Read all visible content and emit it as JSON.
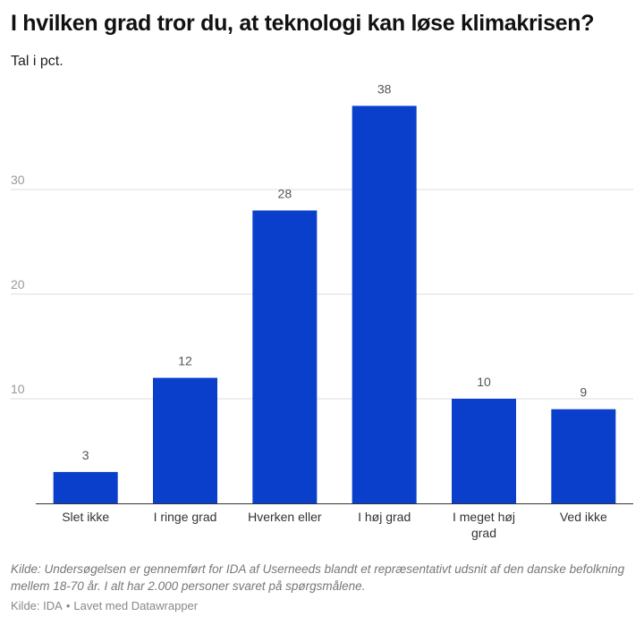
{
  "title": "I hvilken grad tror du, at teknologi kan løse klimakrisen?",
  "subtitle": "Tal i pct.",
  "chart_data": {
    "type": "bar",
    "title": "I hvilken grad tror du, at teknologi kan løse klimakrisen?",
    "subtitle": "Tal i pct.",
    "categories": [
      "Slet ikke",
      "I ringe grad",
      "Hverken eller",
      "I høj grad",
      "I meget høj grad",
      "Ved ikke"
    ],
    "values": [
      3,
      12,
      28,
      38,
      10,
      9
    ],
    "yticks": [
      10,
      20,
      30
    ],
    "ylim": [
      0,
      40
    ],
    "xlabel": "",
    "ylabel": "",
    "grid": true,
    "bar_color": "#0a3fcc",
    "data_labels": true
  },
  "footer": {
    "note": "Kilde: Undersøgelsen er gennemført for IDA af Userneeds blandt et repræsentativt udsnit af den danske befolkning mellem 18-70 år. I alt har 2.000 personer svaret på spørgsmålene.",
    "source": "Kilde: IDA",
    "separator": "•",
    "credit": "Lavet med Datawrapper"
  }
}
